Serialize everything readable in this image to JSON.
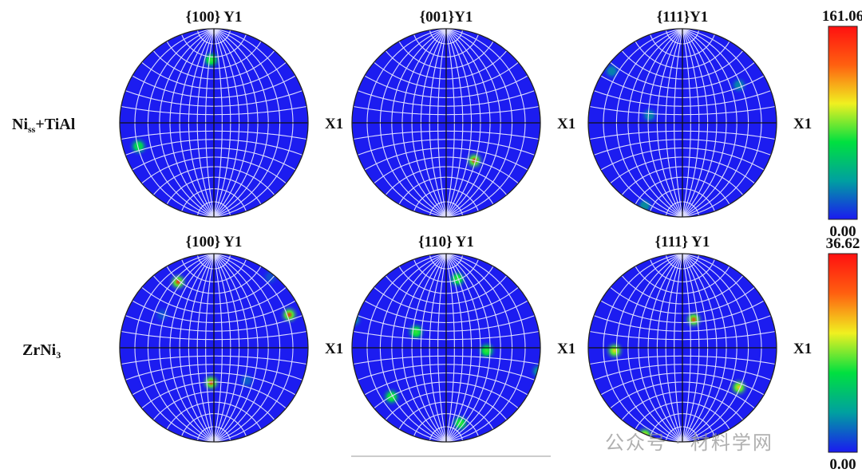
{
  "chart_data": [
    {
      "type": "heatmap",
      "projection": "stereographic pole figure",
      "phase": "Niss+TiAl",
      "title": "{100} Y1",
      "axis_label": "X1",
      "scale_max": 161.06,
      "scale_min": 0.0,
      "peaks": [
        {
          "x": -0.03,
          "y": 0.67,
          "intensity": 0.45
        },
        {
          "x": -0.8,
          "y": -0.25,
          "intensity": 0.4
        }
      ]
    },
    {
      "type": "heatmap",
      "projection": "stereographic pole figure",
      "phase": "Niss+TiAl",
      "title": "{001}Y1",
      "axis_label": "X1",
      "scale_max": 161.06,
      "scale_min": 0.0,
      "peaks": [
        {
          "x": 0.3,
          "y": -0.4,
          "intensity": 1.0
        }
      ]
    },
    {
      "type": "heatmap",
      "projection": "stereographic pole figure",
      "phase": "Niss+TiAl",
      "title": "{111}Y1",
      "axis_label": "X1",
      "scale_max": 161.06,
      "scale_min": 0.0,
      "peaks": [
        {
          "x": -0.75,
          "y": 0.55,
          "intensity": 0.25
        },
        {
          "x": 0.6,
          "y": 0.4,
          "intensity": 0.25
        },
        {
          "x": -0.35,
          "y": 0.08,
          "intensity": 0.25
        },
        {
          "x": -0.4,
          "y": -0.88,
          "intensity": 0.3
        }
      ]
    },
    {
      "type": "heatmap",
      "projection": "stereographic pole figure",
      "phase": "ZrNi3",
      "title": "{100} Y1",
      "axis_label": "X1",
      "scale_max": 36.62,
      "scale_min": 0.0,
      "peaks": [
        {
          "x": -0.38,
          "y": 0.7,
          "intensity": 0.95
        },
        {
          "x": 0.8,
          "y": 0.35,
          "intensity": 0.95
        },
        {
          "x": -0.03,
          "y": -0.37,
          "intensity": 0.95
        },
        {
          "x": 0.35,
          "y": -0.35,
          "intensity": 0.15
        },
        {
          "x": -0.55,
          "y": 0.35,
          "intensity": 0.12
        },
        {
          "x": 0.6,
          "y": 0.75,
          "intensity": 0.12
        }
      ]
    },
    {
      "type": "heatmap",
      "projection": "stereographic pole figure",
      "phase": "ZrNi3",
      "title": "{110} Y1",
      "axis_label": "X1",
      "scale_max": 36.62,
      "scale_min": 0.0,
      "peaks": [
        {
          "x": 0.12,
          "y": 0.73,
          "intensity": 0.45
        },
        {
          "x": -0.32,
          "y": 0.17,
          "intensity": 0.45
        },
        {
          "x": 0.43,
          "y": -0.03,
          "intensity": 0.45
        },
        {
          "x": -0.58,
          "y": -0.52,
          "intensity": 0.45
        },
        {
          "x": 0.15,
          "y": -0.8,
          "intensity": 0.45
        },
        {
          "x": -0.98,
          "y": 0.3,
          "intensity": 0.3
        },
        {
          "x": 0.98,
          "y": -0.25,
          "intensity": 0.3
        }
      ]
    },
    {
      "type": "heatmap",
      "projection": "stereographic pole figure",
      "phase": "ZrNi3",
      "title": "{111} Y1",
      "axis_label": "X1",
      "scale_max": 36.62,
      "scale_min": 0.0,
      "peaks": [
        {
          "x": 0.12,
          "y": 0.3,
          "intensity": 0.9
        },
        {
          "x": -0.72,
          "y": -0.03,
          "intensity": 0.65
        },
        {
          "x": 0.6,
          "y": -0.42,
          "intensity": 0.65
        },
        {
          "x": -0.4,
          "y": -0.93,
          "intensity": 0.65
        }
      ]
    }
  ],
  "rows": [
    {
      "label_main": "Ni",
      "label_sub": "ss",
      "label_rest": "+TiAl"
    },
    {
      "label_main": "ZrNi",
      "label_sub": "3",
      "label_rest": ""
    }
  ],
  "colorbars": [
    {
      "max": "161.06",
      "min": "0.00"
    },
    {
      "max": "36.62",
      "min": "0.00"
    }
  ],
  "colors": {
    "background": "#1c1cf0",
    "grid": "#dcdcff",
    "colormap": [
      "#1a1af0",
      "#00a0a0",
      "#00e040",
      "#f0f020",
      "#ff6010",
      "#ff1010"
    ]
  },
  "watermark": "公众号 · 材料学网"
}
